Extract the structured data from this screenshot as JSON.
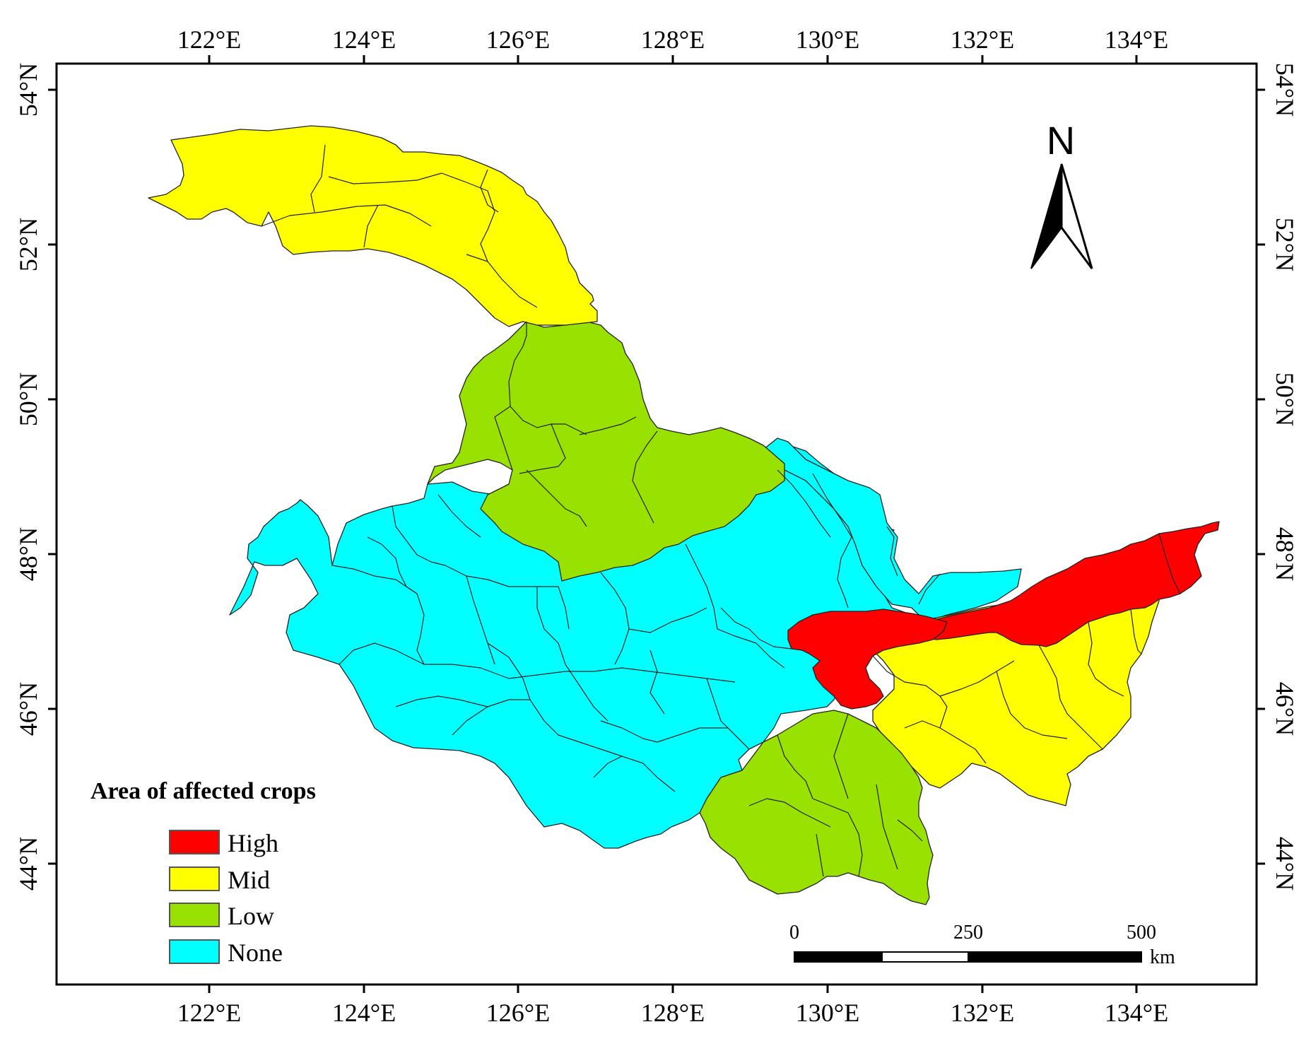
{
  "map": {
    "lon_labels": [
      "122°E",
      "124°E",
      "126°E",
      "128°E",
      "130°E",
      "132°E",
      "134°E"
    ],
    "lat_labels": [
      "54°N",
      "52°N",
      "50°N",
      "48°N",
      "46°N",
      "44°N"
    ]
  },
  "legend": {
    "title": "Area of affected crops",
    "items": [
      {
        "key": "high",
        "label": "High",
        "color": "#FF0000"
      },
      {
        "key": "mid",
        "label": "Mid",
        "color": "#FFFF00"
      },
      {
        "key": "low",
        "label": "Low",
        "color": "#99E100"
      },
      {
        "key": "none",
        "label": "None",
        "color": "#00FFFF"
      }
    ]
  },
  "north_arrow": {
    "label": "N"
  },
  "scale_bar": {
    "labels": [
      "0",
      "250",
      "500"
    ],
    "unit": "km"
  }
}
